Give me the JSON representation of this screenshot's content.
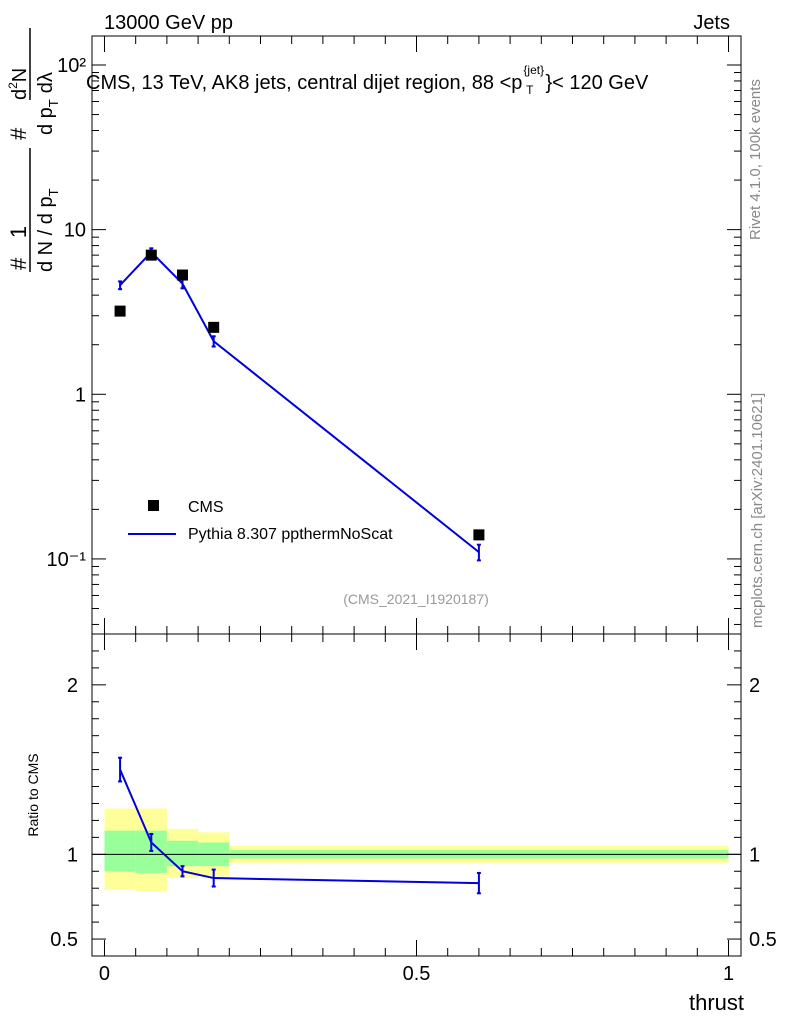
{
  "header": {
    "energy": "13000 GeV pp",
    "category": "Jets"
  },
  "side": {
    "rivet": "Rivet 4.1.0,  100k events",
    "mcplots": "mcplots.cern.ch [arXiv:2401.10621]"
  },
  "colors": {
    "mc": "#0000dd",
    "data": "#000000",
    "band_inner": "#99ff99",
    "band_outer": "#ffff99"
  },
  "chart_data": [
    {
      "type": "scatter",
      "title": "CMS, 13 TeV, AK8 jets, central dijet region, 88 <p_T^{jet}< 120 GeV",
      "title_main": "CMS, 13 TeV, AK8 jets, central dijet region, 88 <p",
      "title_sup": "{jet}",
      "title_sub": "T",
      "title_end": "}< 120 GeV",
      "ylabel": "1/(dN/dp_T) d²N/(dp_T dλ)",
      "ylabel_parts": {
        "hash": "#",
        "one": "1",
        "den": "d N / d p",
        "den_sub": "T",
        "num": "d",
        "num_sup": "2",
        "num_N": "N",
        "num_den": "d p",
        "num_den_sub": "T",
        "num_den_end": "dλ"
      },
      "yscale": "log",
      "ylim": [
        0.035,
        150
      ],
      "xlim": [
        -0.02,
        1.02
      ],
      "ytick_labels": [
        "10⁻¹",
        "1",
        "10",
        "10²"
      ],
      "ytick_values": [
        0.1,
        1,
        10,
        100
      ],
      "watermark": "(CMS_2021_I1920187)",
      "legend_position": "lower-left",
      "series": [
        {
          "name": "CMS",
          "style": "markers",
          "x": [
            0.025,
            0.075,
            0.125,
            0.175,
            0.6
          ],
          "y": [
            3.2,
            7.0,
            5.3,
            2.55,
            0.14
          ]
        },
        {
          "name": "Pythia 8.307 ppthermNoScat",
          "style": "line",
          "x": [
            0.025,
            0.075,
            0.125,
            0.175,
            0.6
          ],
          "y": [
            4.6,
            7.3,
            4.7,
            2.1,
            0.11
          ],
          "yerr": [
            0.25,
            0.4,
            0.3,
            0.15,
            0.012
          ]
        }
      ]
    },
    {
      "type": "line",
      "ylabel": "Ratio to CMS",
      "xlabel": "thrust",
      "xlim": [
        -0.02,
        1.02
      ],
      "ylim": [
        0.4,
        2.3
      ],
      "xtick_labels": [
        "0",
        "0.5",
        "1"
      ],
      "xtick_values": [
        0,
        0.5,
        1
      ],
      "ytick_labels": [
        "0.5",
        "1",
        "2"
      ],
      "ytick_values": [
        0.5,
        1,
        2
      ],
      "bands": [
        {
          "x0": 0.0,
          "x1": 0.05,
          "inner": [
            0.9,
            1.14
          ],
          "outer": [
            0.79,
            1.27
          ]
        },
        {
          "x0": 0.05,
          "x1": 0.1,
          "inner": [
            0.89,
            1.14
          ],
          "outer": [
            0.78,
            1.27
          ]
        },
        {
          "x0": 0.1,
          "x1": 0.15,
          "inner": [
            0.93,
            1.08
          ],
          "outer": [
            0.86,
            1.15
          ]
        },
        {
          "x0": 0.15,
          "x1": 0.2,
          "inner": [
            0.93,
            1.07
          ],
          "outer": [
            0.87,
            1.13
          ]
        },
        {
          "x0": 0.2,
          "x1": 1.0,
          "inner": [
            0.975,
            1.025
          ],
          "outer": [
            0.95,
            1.05
          ]
        }
      ],
      "series": [
        {
          "name": "Pythia 8.307 ppthermNoScat / CMS",
          "x": [
            0.025,
            0.075,
            0.125,
            0.175,
            0.6
          ],
          "y": [
            1.5,
            1.07,
            0.9,
            0.86,
            0.83
          ],
          "yerr": [
            0.07,
            0.05,
            0.03,
            0.05,
            0.06
          ]
        }
      ]
    }
  ]
}
